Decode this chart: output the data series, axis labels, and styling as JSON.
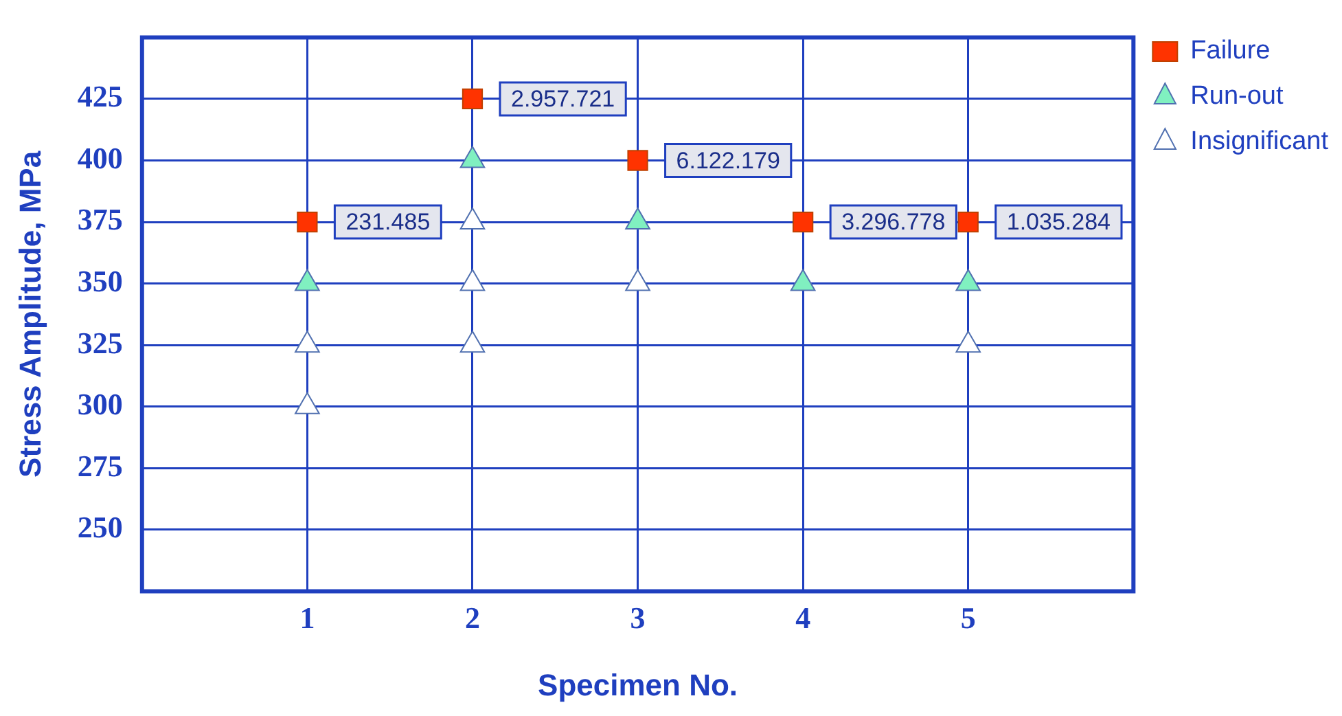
{
  "chart_data": {
    "type": "scatter",
    "xlabel": "Specimen No.",
    "ylabel": "Stress Amplitude, MPa",
    "xlim": [
      0,
      6
    ],
    "xticks": [
      1,
      2,
      3,
      4,
      5
    ],
    "ylim": [
      225,
      450
    ],
    "yticks": [
      250,
      275,
      300,
      325,
      350,
      375,
      400,
      425
    ],
    "grid": true,
    "legend": "top right",
    "series": [
      {
        "name": "Failure",
        "color": "#ff3300",
        "marker": "square",
        "x": [
          1,
          2,
          3,
          4,
          5
        ],
        "values": [
          375,
          425,
          400,
          375,
          375
        ]
      },
      {
        "name": "Run-out",
        "color": "#80f0c0",
        "marker": "triangle",
        "x": [
          1,
          2,
          3,
          4,
          5
        ],
        "values": [
          350,
          400,
          375,
          350,
          350
        ]
      },
      {
        "name": "Insignificant",
        "color": "#ffffff",
        "marker": "triangle",
        "x": [
          1,
          1,
          2,
          2,
          2,
          3,
          5
        ],
        "values": [
          325,
          300,
          375,
          350,
          325,
          350,
          325
        ]
      }
    ],
    "annotations": [
      {
        "text": "231.485",
        "x": 1,
        "y": 375
      },
      {
        "text": "2.957.721",
        "x": 2,
        "y": 425
      },
      {
        "text": "6.122.179",
        "x": 3,
        "y": 400
      },
      {
        "text": "3.296.778",
        "x": 4,
        "y": 375
      },
      {
        "text": "1.035.284",
        "x": 5,
        "y": 375
      }
    ]
  }
}
